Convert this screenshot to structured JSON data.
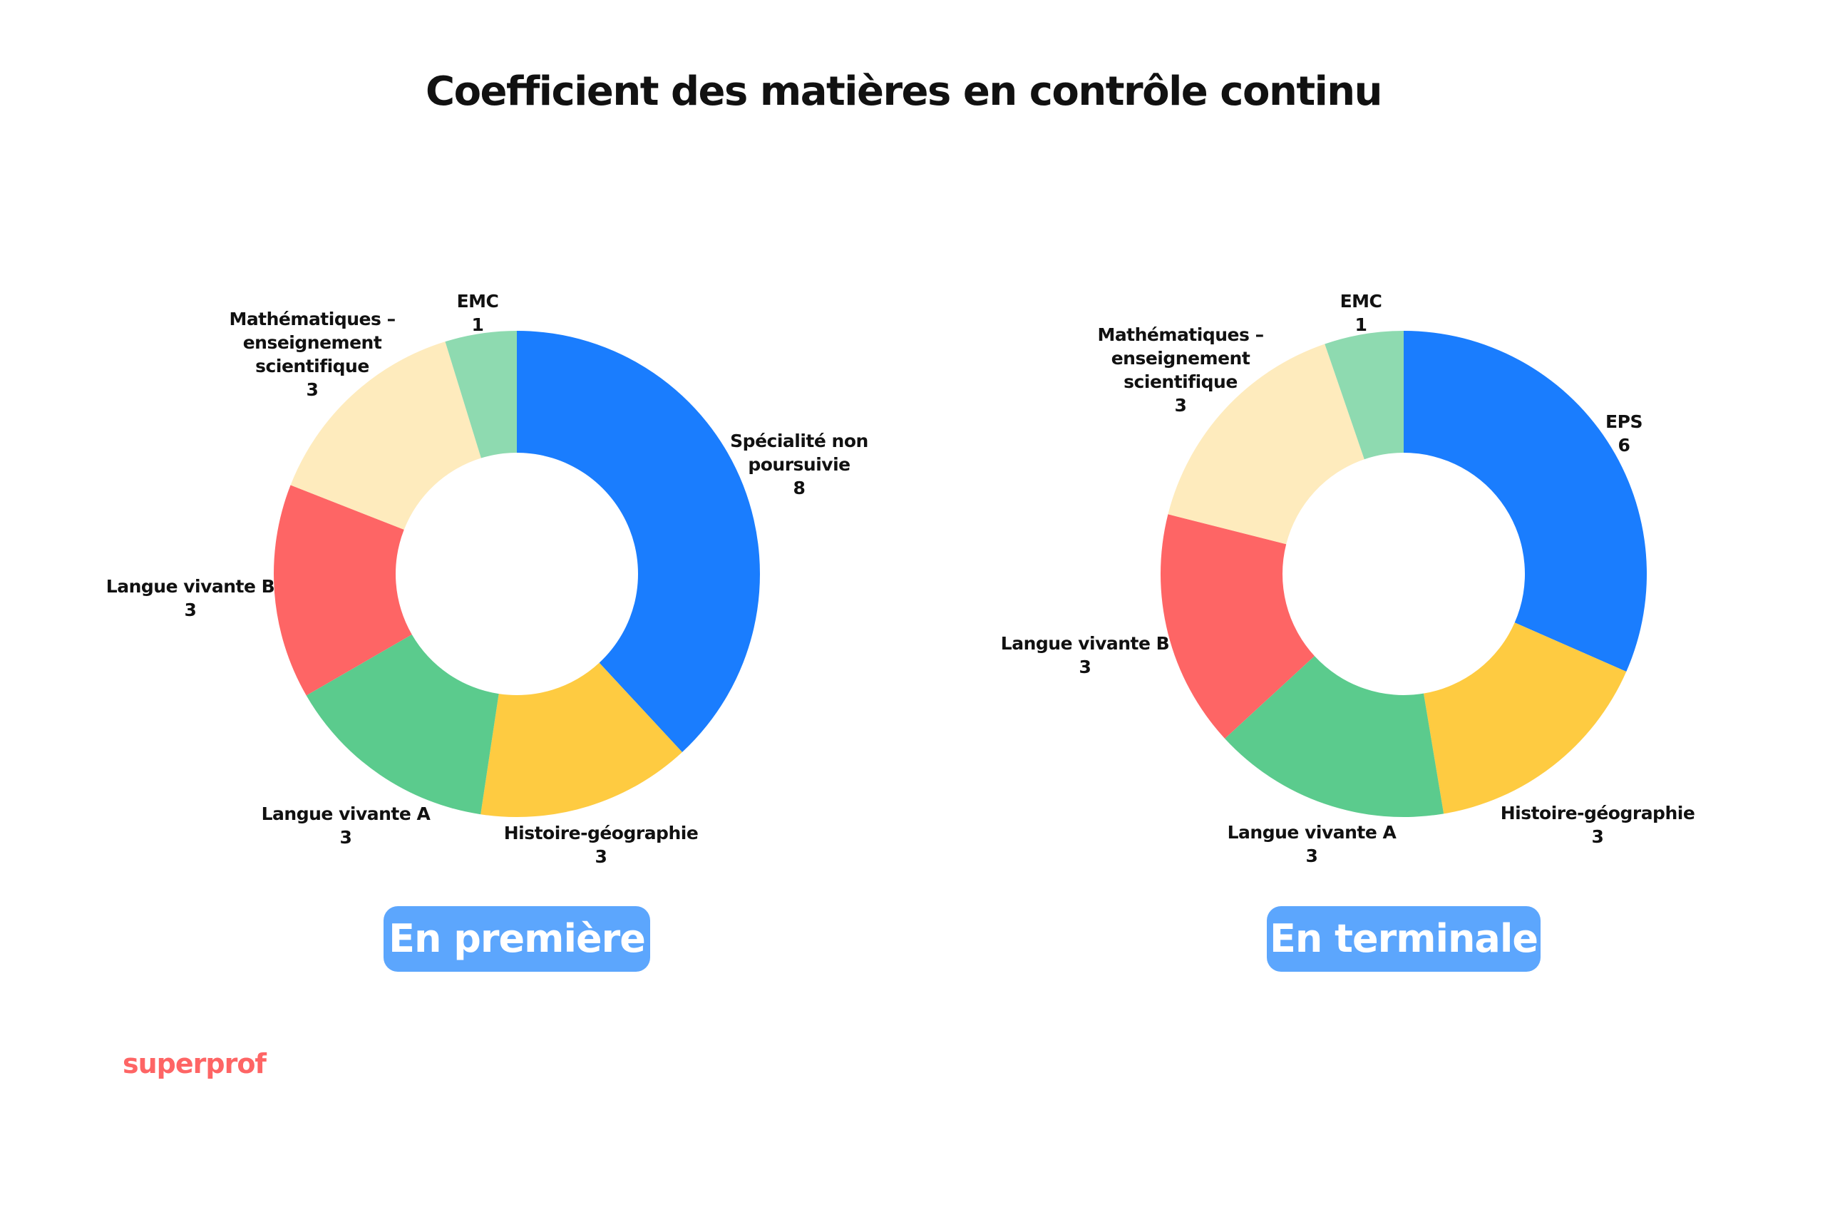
{
  "title": "Coefficient des matières en contrôle continu",
  "colors": {
    "blue": "#1a7dfe",
    "yellow": "#fecb41",
    "green": "#5bcb8d",
    "red": "#fe6565",
    "cream": "#feebbd",
    "mint": "#8edab0",
    "badge": "#5ca6fd",
    "brand": "#fe6565"
  },
  "premiere": {
    "badge": "En première",
    "labels": {
      "specialite": {
        "name1": "Spécialité non",
        "name2": "poursuivie",
        "value": "8"
      },
      "histoire": {
        "name": "Histoire-géographie",
        "value": "3"
      },
      "lva": {
        "name": "Langue vivante A",
        "value": "3"
      },
      "lvb": {
        "name": "Langue vivante B",
        "value": "3"
      },
      "maths": {
        "name1": "Mathématiques –",
        "name2": "enseignement",
        "name3": "scientifique",
        "value": "3"
      },
      "emc": {
        "name": "EMC",
        "value": "1"
      }
    }
  },
  "terminale": {
    "badge": "En terminale",
    "labels": {
      "eps": {
        "name": "EPS",
        "value": "6"
      },
      "histoire": {
        "name": "Histoire-géographie",
        "value": "3"
      },
      "lva": {
        "name": "Langue vivante A",
        "value": "3"
      },
      "lvb": {
        "name": "Langue vivante B",
        "value": "3"
      },
      "maths": {
        "name1": "Mathématiques –",
        "name2": "enseignement",
        "name3": "scientifique",
        "value": "3"
      },
      "emc": {
        "name": "EMC",
        "value": "1"
      }
    }
  },
  "brand": {
    "logo": "superprof"
  },
  "chart_data": [
    {
      "type": "pie",
      "subtype": "donut",
      "title": "En première",
      "categories": [
        "Spécialité non poursuivie",
        "Histoire-géographie",
        "Langue vivante A",
        "Langue vivante B",
        "Mathématiques – enseignement scientifique",
        "EMC"
      ],
      "values": [
        8,
        3,
        3,
        3,
        3,
        1
      ],
      "colors": [
        "#1a7dfe",
        "#fecb41",
        "#5bcb8d",
        "#fe6565",
        "#feebbd",
        "#8edab0"
      ],
      "start_angle": "12 o'clock, clockwise"
    },
    {
      "type": "pie",
      "subtype": "donut",
      "title": "En terminale",
      "categories": [
        "EPS",
        "Histoire-géographie",
        "Langue vivante A",
        "Langue vivante B",
        "Mathématiques – enseignement scientifique",
        "EMC"
      ],
      "values": [
        6,
        3,
        3,
        3,
        3,
        1
      ],
      "colors": [
        "#1a7dfe",
        "#fecb41",
        "#5bcb8d",
        "#fe6565",
        "#feebbd",
        "#8edab0"
      ],
      "start_angle": "12 o'clock, clockwise"
    }
  ]
}
